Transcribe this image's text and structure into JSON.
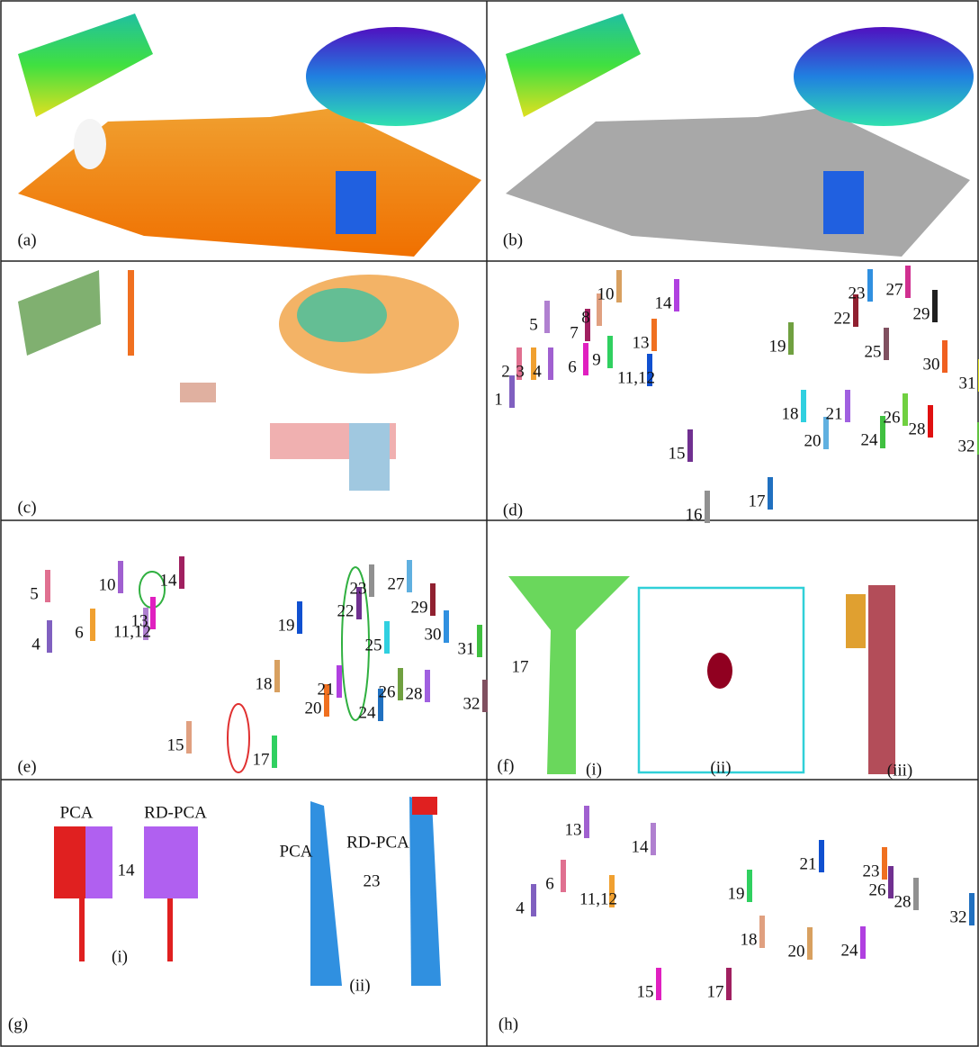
{
  "panels": [
    {
      "label": "(a)"
    },
    {
      "label": "(b)"
    },
    {
      "label": "(c)"
    },
    {
      "label": "(d)",
      "objects": [
        "1",
        "2",
        "3",
        "4",
        "5",
        "6",
        "7",
        "8",
        "9",
        "10",
        "11,12",
        "13",
        "14",
        "15",
        "16",
        "17",
        "18",
        "19",
        "20",
        "21",
        "22",
        "23",
        "24",
        "25",
        "26",
        "27",
        "28",
        "29",
        "30",
        "31",
        "32"
      ]
    },
    {
      "label": "(e)",
      "objects": [
        "4",
        "5",
        "6",
        "10",
        "11,12",
        "13",
        "14",
        "15",
        "17",
        "18",
        "19",
        "20",
        "21",
        "22",
        "23",
        "24",
        "25",
        "26",
        "27",
        "28",
        "29",
        "30",
        "31",
        "32"
      ]
    },
    {
      "label": "(f)",
      "objects": [
        "17"
      ],
      "sublabels": [
        "(i)",
        "(ii)",
        "(iii)"
      ]
    },
    {
      "label": "(g)",
      "annotations": [
        "PCA",
        "RD-PCA",
        "14",
        "PCA",
        "RD-PCA",
        "23"
      ],
      "sublabels": [
        "(i)",
        "(ii)"
      ]
    },
    {
      "label": "(h)",
      "objects": [
        "4",
        "6",
        "11,12",
        "13",
        "14",
        "15",
        "17",
        "18",
        "19",
        "20",
        "21",
        "23",
        "24",
        "26",
        "28",
        "32"
      ]
    }
  ]
}
